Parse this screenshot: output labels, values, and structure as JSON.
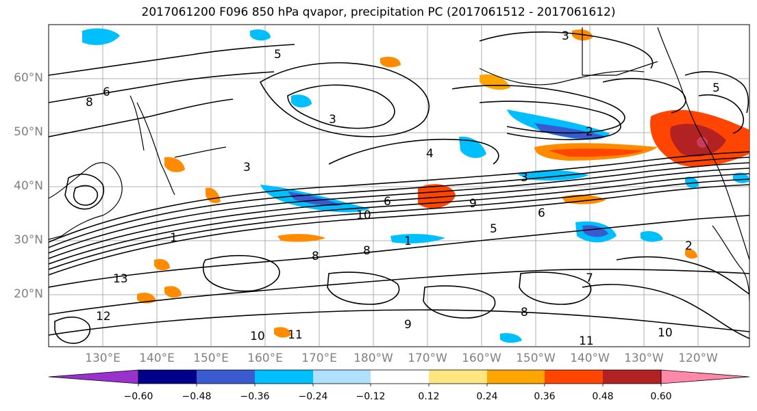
{
  "title": "2017061200 F096 850 hPa qvapor, precipitation PC (2017061512 - 2017061612)",
  "lat_labels": [
    "60°N",
    "50°N",
    "40°N",
    "30°N",
    "20°N"
  ],
  "lon_labels": [
    "130°E",
    "140°E",
    "150°E",
    "160°E",
    "170°E",
    "180°W",
    "170°W",
    "160°W",
    "150°W",
    "140°W",
    "130°W",
    "120°W"
  ],
  "colorbar": {
    "ticks": [
      "−0.60",
      "−0.48",
      "−0.36",
      "−0.24",
      "−0.12",
      "0.12",
      "0.24",
      "0.36",
      "0.48",
      "0.60"
    ],
    "colors": [
      "#9932cc",
      "#00008b",
      "#3a5ad0",
      "#00bfff",
      "#b0e0ff",
      "#ffffff",
      "#ffe680",
      "#ffa500",
      "#ff4500",
      "#b22222",
      "#ff88aa"
    ]
  },
  "contour_labels": [
    "13",
    "10",
    "8",
    "6",
    "5",
    "4",
    "3",
    "2",
    "1",
    "9",
    "11",
    "12",
    "7"
  ]
}
